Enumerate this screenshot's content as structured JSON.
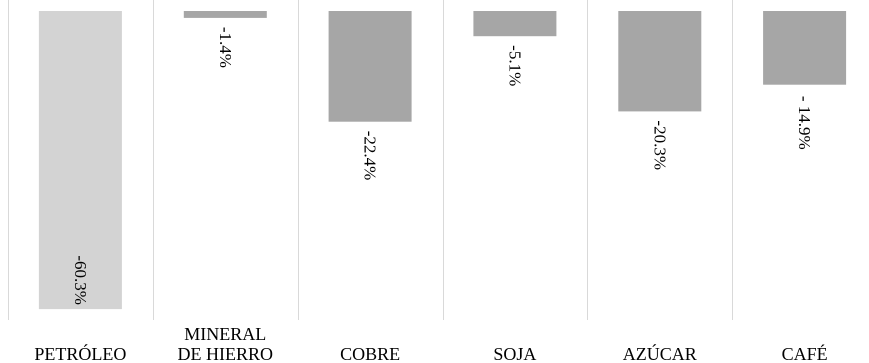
{
  "chart_data": {
    "type": "bar",
    "orientation": "vertical",
    "categories": [
      [
        "PETRÓLEO"
      ],
      [
        "MINERAL",
        "DE HIERRO"
      ],
      [
        "COBRE"
      ],
      [
        "SOJA"
      ],
      [
        "AZÚCAR"
      ],
      [
        "CAFÉ"
      ]
    ],
    "values": [
      -60.3,
      -1.4,
      -22.4,
      -5.1,
      -20.3,
      -14.9
    ],
    "data_labels": [
      "-60.3%",
      "-1.4%",
      "-22.4%",
      "-5.1%",
      "-20.3%",
      "- 14.9%"
    ],
    "ylim": [
      -62.5,
      0
    ],
    "title": "",
    "xlabel": "",
    "ylabel": "",
    "grid": true,
    "legend": "none",
    "colors": {
      "highlight": "#d3d3d3",
      "bar": "#a6a6a6",
      "grid": "#d9d9d9",
      "text": "#000000"
    },
    "highlight_index": 0
  }
}
